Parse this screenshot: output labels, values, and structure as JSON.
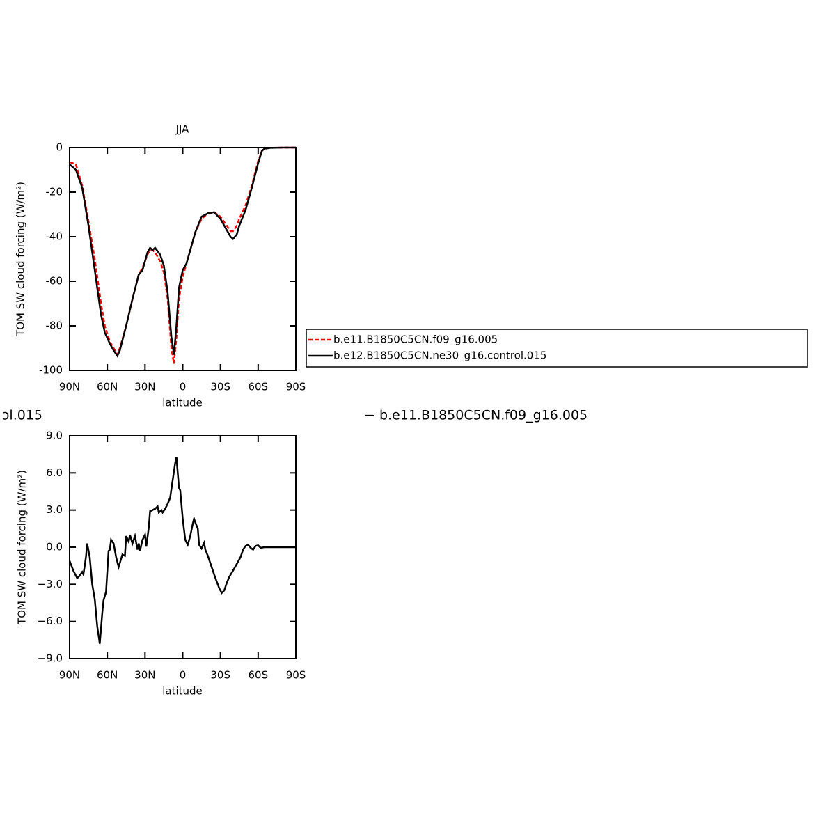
{
  "chart_data": [
    {
      "type": "line",
      "title": "JJA",
      "xlabel": "latitude",
      "ylabel": "TOM SW cloud forcing (W/m²)",
      "x": [
        90,
        85,
        80,
        75,
        70,
        65,
        62,
        58,
        55,
        52,
        50,
        45,
        40,
        35,
        32,
        28,
        26,
        24,
        22,
        18,
        15,
        12,
        9,
        7,
        5,
        3,
        0,
        -3,
        -5,
        -10,
        -15,
        -20,
        -25,
        -30,
        -35,
        -38,
        -40,
        -43,
        -45,
        -50,
        -55,
        -60,
        -63,
        -65,
        -70,
        -80,
        -90
      ],
      "xlim": [
        90,
        -90
      ],
      "xticks": [
        {
          "value": 90,
          "label": "90N"
        },
        {
          "value": 60,
          "label": "60N"
        },
        {
          "value": 30,
          "label": "30N"
        },
        0,
        {
          "value": -30,
          "label": "30S"
        },
        {
          "value": -60,
          "label": "60S"
        },
        {
          "value": -90,
          "label": "90S"
        }
      ],
      "ylim": [
        -100,
        0
      ],
      "yticks": [
        0,
        -20,
        -40,
        -60,
        -80,
        -100
      ],
      "series": [
        {
          "name": "b.e11.B1850C5CN.f09_g16.005",
          "color": "#ff0000",
          "linestyle": "dashed",
          "values": [
            -6.5,
            -7.5,
            -17,
            -33,
            -50,
            -70,
            -80,
            -87,
            -90,
            -93,
            -90,
            -80,
            -68,
            -57,
            -54,
            -48,
            -46,
            -46,
            -47,
            -51,
            -56,
            -68,
            -90,
            -97,
            -85,
            -68,
            -58,
            -52,
            -48,
            -38,
            -32,
            -29.5,
            -29,
            -31,
            -35,
            -37.5,
            -37.5,
            -35,
            -32,
            -26,
            -17,
            -6,
            -1.5,
            -0.5,
            -0.1,
            0,
            0
          ]
        },
        {
          "name": "b.e12.B1850C5CN.ne30_g16.control.015",
          "color": "#000000",
          "linestyle": "solid",
          "values": [
            -7.5,
            -10,
            -18,
            -35,
            -55,
            -75,
            -83,
            -88,
            -91,
            -93.5,
            -91,
            -80,
            -68,
            -57,
            -55,
            -47,
            -45,
            -46,
            -45,
            -48,
            -53,
            -65,
            -85,
            -93,
            -80,
            -63,
            -55,
            -52,
            -48,
            -38,
            -31,
            -29.5,
            -29,
            -32,
            -37,
            -40,
            -41,
            -39,
            -35,
            -28,
            -18,
            -7,
            -1.5,
            -0.5,
            -0.1,
            0,
            0
          ]
        }
      ]
    },
    {
      "type": "line",
      "title_left": "ɔl.015",
      "title_right": "− b.e11.B1850C5CN.f09_g16.005",
      "xlabel": "latitude",
      "ylabel": "TOM SW cloud forcing (W/m²)",
      "x": [
        90,
        87,
        84,
        82,
        80,
        79,
        77,
        76,
        74,
        72,
        70,
        68,
        66,
        64,
        63,
        61,
        59,
        58,
        57,
        55,
        53,
        51,
        48,
        46,
        45,
        43,
        42,
        40,
        38,
        36,
        35,
        34,
        32,
        30,
        29,
        27,
        26,
        24,
        22,
        20,
        19,
        17,
        16,
        14,
        12,
        10,
        8,
        6,
        5,
        3,
        2,
        0,
        -2,
        -4,
        -6,
        -8,
        -9,
        -10,
        -12,
        -13,
        -15,
        -17,
        -18,
        -20,
        -23,
        -26,
        -29,
        -31,
        -33,
        -35,
        -37,
        -40,
        -43,
        -46,
        -48,
        -50,
        -52,
        -54,
        -56,
        -58,
        -60,
        -62,
        -65,
        -70,
        -80,
        -90
      ],
      "xlim": [
        90,
        -90
      ],
      "xticks": [
        {
          "value": 90,
          "label": "90N"
        },
        {
          "value": 60,
          "label": "60N"
        },
        {
          "value": 30,
          "label": "30N"
        },
        0,
        {
          "value": -30,
          "label": "30S"
        },
        {
          "value": -60,
          "label": "60S"
        },
        {
          "value": -90,
          "label": "90S"
        }
      ],
      "ylim": [
        -9,
        9
      ],
      "yticks": [
        {
          "value": 9,
          "label": "9.0"
        },
        {
          "value": 6,
          "label": "6.0"
        },
        {
          "value": 3,
          "label": "3.0"
        },
        {
          "value": 0,
          "label": "0.0"
        },
        {
          "value": -3,
          "label": "−3.0"
        },
        {
          "value": -6,
          "label": "−6.0"
        },
        {
          "value": -9,
          "label": "−9.0"
        }
      ],
      "series": [
        {
          "color": "#000000",
          "linestyle": "solid",
          "values": [
            -1.1,
            -1.9,
            -2.5,
            -2.3,
            -2.0,
            -2.2,
            -0.8,
            0.3,
            -0.8,
            -3.0,
            -4.2,
            -6.4,
            -7.8,
            -5.3,
            -4.3,
            -3.6,
            -0.3,
            -0.2,
            0.6,
            0.3,
            -0.8,
            -1.6,
            -0.6,
            -0.7,
            0.9,
            0.45,
            1.0,
            0.3,
            0.9,
            -0.2,
            0.3,
            -0.3,
            0.6,
            1.0,
            0.05,
            1.6,
            2.9,
            3.0,
            3.1,
            3.3,
            2.8,
            3.0,
            2.8,
            3.1,
            3.5,
            4.0,
            5.4,
            6.8,
            7.3,
            4.8,
            4.6,
            2.3,
            0.6,
            0.2,
            0.9,
            1.9,
            2.3,
            2.0,
            1.5,
            0.2,
            -0.1,
            0.35,
            -0.2,
            -0.7,
            -1.6,
            -2.5,
            -3.3,
            -3.7,
            -3.5,
            -2.9,
            -2.4,
            -1.9,
            -1.35,
            -0.8,
            -0.2,
            0.1,
            0.2,
            -0.05,
            -0.2,
            0.1,
            0.15,
            -0.05,
            0,
            0,
            0,
            0
          ]
        }
      ]
    }
  ]
}
